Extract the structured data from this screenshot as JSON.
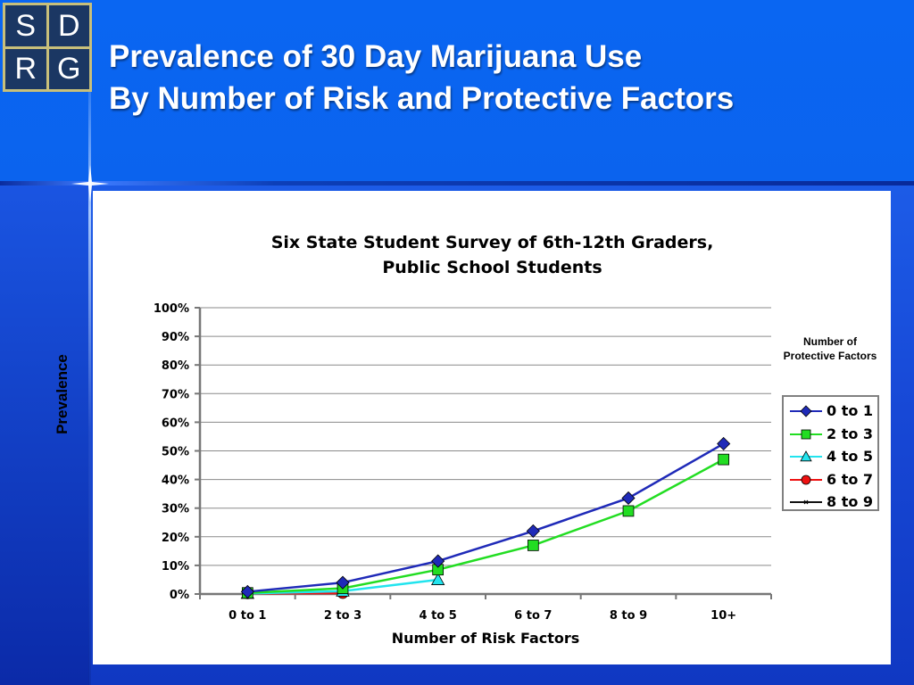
{
  "slide": {
    "title_line1": "Prevalence of 30 Day Marijuana Use",
    "title_line2": "By Number of Risk and Protective Factors"
  },
  "logo": {
    "letters": [
      "S",
      "D",
      "R",
      "G"
    ]
  },
  "colors": {
    "background": "#1c5ae6",
    "title_text": "#ffffff",
    "logo_gold": "#c8bf7a",
    "logo_navy": "#1b3763"
  },
  "chart_data": {
    "type": "line",
    "title_line1": "Six State Student Survey of 6th-12th Graders,",
    "title_line2": "Public School Students",
    "xlabel": "Number of Risk Factors",
    "ylabel": "Prevalence",
    "legend_title": "Number of Protective Factors",
    "legend_position": "right",
    "categories": [
      "0 to 1",
      "2 to 3",
      "4 to 5",
      "6 to 7",
      "8 to 9",
      "10+"
    ],
    "y_ticks": [
      "0%",
      "10%",
      "20%",
      "30%",
      "40%",
      "50%",
      "60%",
      "70%",
      "80%",
      "90%",
      "100%"
    ],
    "ylim": [
      0,
      100
    ],
    "grid": true,
    "series": [
      {
        "name": "0 to 1",
        "color": "#1f2ab8",
        "marker": "diamond",
        "fill": "#1f2ab8",
        "values": [
          0.8,
          4,
          11.5,
          22,
          33.5,
          52.5
        ]
      },
      {
        "name": "2 to 3",
        "color": "#22dd22",
        "marker": "square",
        "fill": "#22dd22",
        "values": [
          0.4,
          2,
          8.5,
          17,
          29,
          47
        ]
      },
      {
        "name": "4 to 5",
        "color": "#22e4ee",
        "marker": "triangle",
        "fill": "#22e4ee",
        "values": [
          0.2,
          1,
          5,
          null,
          null,
          null
        ]
      },
      {
        "name": "6 to 7",
        "color": "#ee1111",
        "marker": "circle",
        "fill": "#ee1111",
        "values": [
          0.2,
          0.3,
          null,
          null,
          null,
          null
        ]
      },
      {
        "name": "8 to 9",
        "color": "#111111",
        "marker": "x",
        "fill": "#111111",
        "values": [
          0.1,
          null,
          null,
          null,
          null,
          null
        ]
      }
    ]
  }
}
